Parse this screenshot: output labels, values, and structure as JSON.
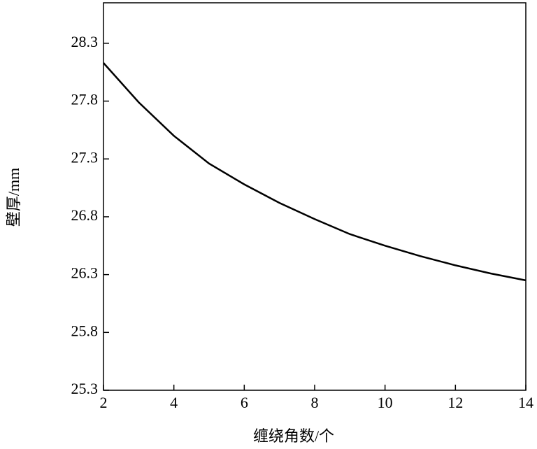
{
  "chart_data": {
    "type": "line",
    "x_label": "缠绕角数/个",
    "y_label": "壁厚/mm",
    "x": [
      2,
      3,
      4,
      5,
      6,
      7,
      8,
      9,
      10,
      11,
      12,
      13,
      14
    ],
    "values": [
      28.13,
      27.79,
      27.5,
      27.26,
      27.08,
      26.92,
      26.78,
      26.65,
      26.55,
      26.46,
      26.38,
      26.31,
      26.25
    ],
    "color": "#000000",
    "xlim": [
      2,
      14
    ],
    "xticks": [
      2,
      4,
      6,
      8,
      10,
      12,
      14
    ],
    "ylim": [
      25.3,
      28.65
    ],
    "yticks": [
      25.3,
      25.8,
      26.3,
      26.8,
      27.3,
      27.8,
      28.3
    ],
    "grid": false
  }
}
